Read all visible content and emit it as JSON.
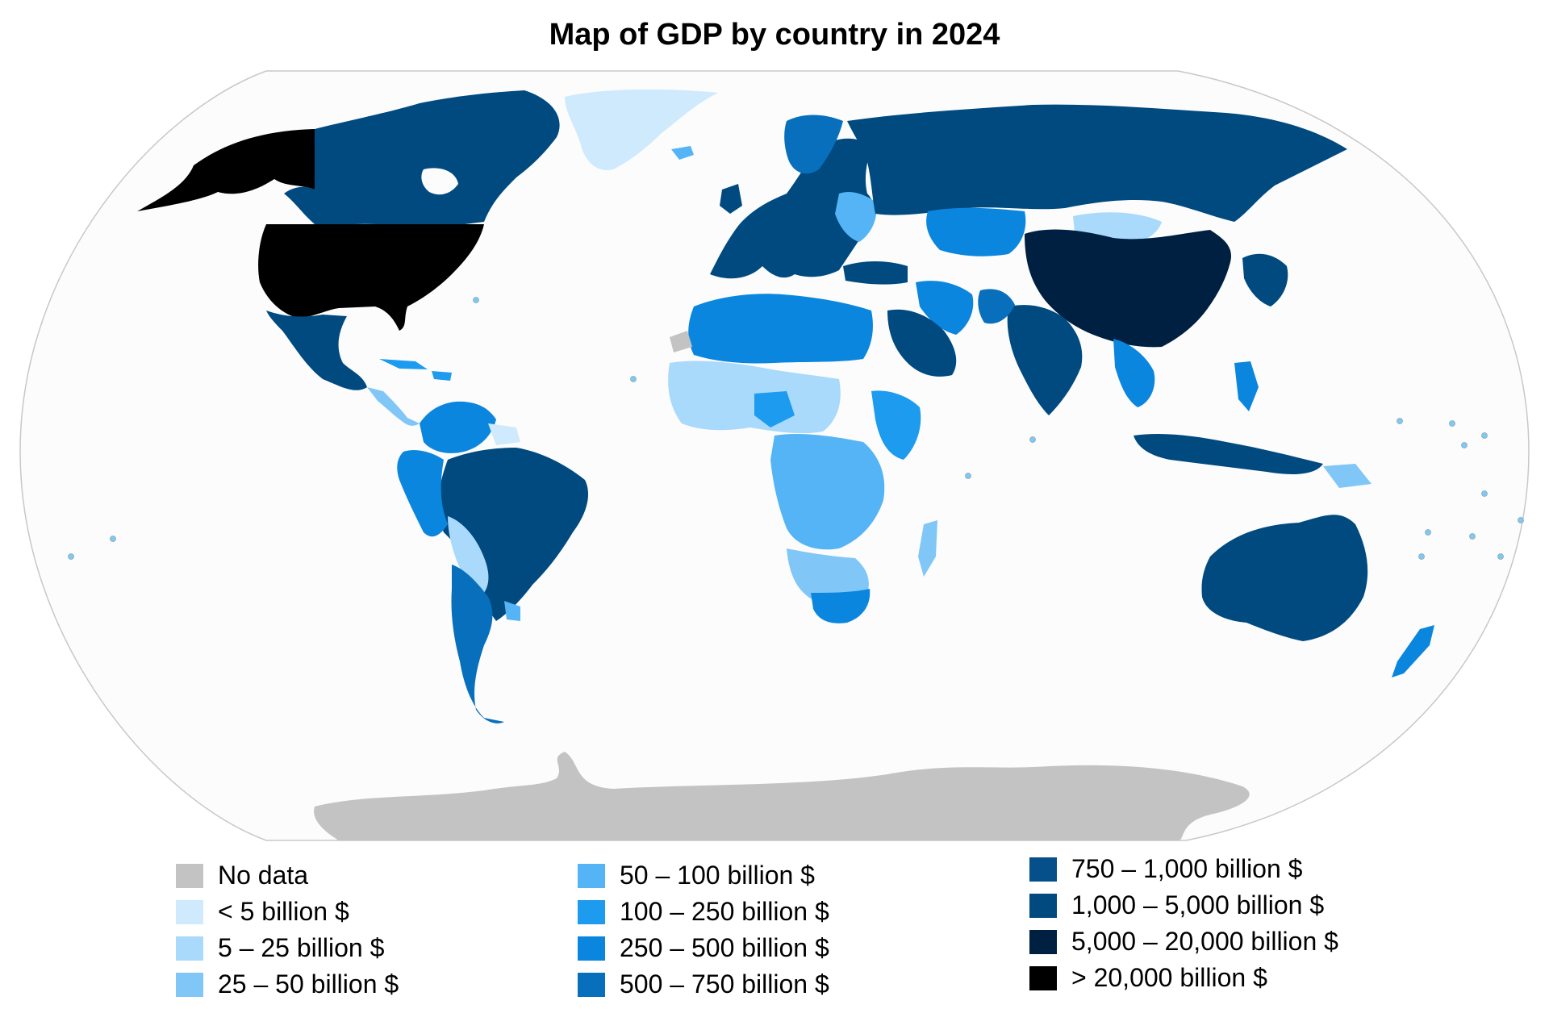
{
  "map": {
    "title": "Map of GDP by country in 2024",
    "ocean_color": "#fcfcfc",
    "outline_color": "#c8c8c8"
  },
  "legend": {
    "col1": [
      {
        "label": "No data",
        "color": "#c3c3c3"
      },
      {
        "label": "< 5 billion $",
        "color": "#cfe9fd"
      },
      {
        "label": "5 – 25 billion $",
        "color": "#a9d9fb"
      },
      {
        "label": "25 – 50 billion $",
        "color": "#80c6f7"
      }
    ],
    "col2": [
      {
        "label": "50 – 100 billion $",
        "color": "#55b4f5"
      },
      {
        "label": "100 – 250 billion $",
        "color": "#1d9bef"
      },
      {
        "label": "250 – 500 billion $",
        "color": "#0b86de"
      },
      {
        "label": "500 – 750 billion $",
        "color": "#086fbd"
      }
    ],
    "col3": [
      {
        "label": "750 – 1,000 billion $",
        "color": "#05508b"
      },
      {
        "label": "1,000 – 5,000 billion $",
        "color": "#004a80"
      },
      {
        "label": "5,000 – 20,000 billion $",
        "color": "#002042"
      },
      {
        "label": "> 20,000 billion $",
        "color": "#000000"
      }
    ]
  }
}
